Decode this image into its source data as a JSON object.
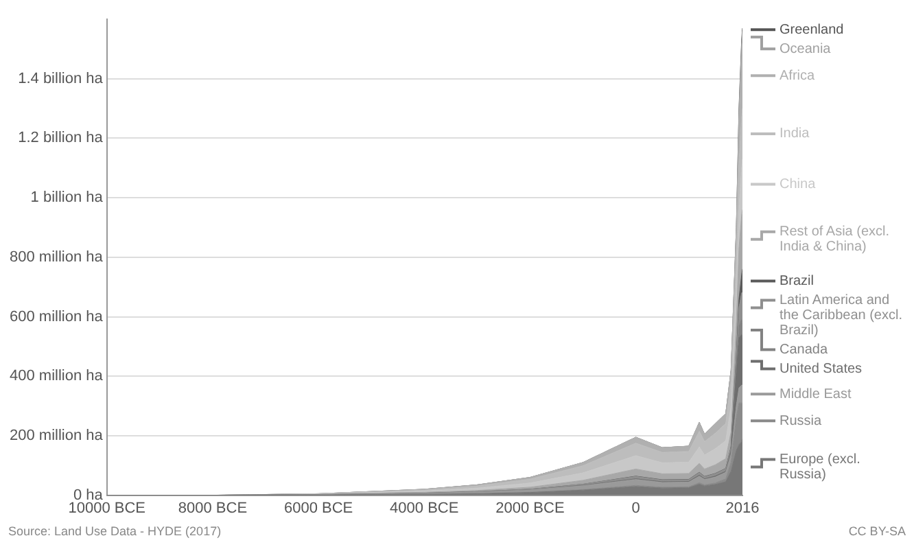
{
  "chart_data": {
    "type": "area",
    "stacked": true,
    "legend": "right",
    "x": [
      -10000,
      -8000,
      -6000,
      -4000,
      -3000,
      -2000,
      -1000,
      0,
      500,
      1000,
      1200,
      1300,
      1500,
      1700,
      1800,
      1900,
      1950,
      2000,
      2016
    ],
    "series": [
      {
        "name": "Europe (excl. Russia)",
        "color": "#777777",
        "values": [
          0,
          0,
          1000000.0,
          3000000.0,
          5000000.0,
          9000000.0,
          17000000.0,
          29000000.0,
          24000000.0,
          25000000.0,
          37000000.0,
          31000000.0,
          36000000.0,
          45000000.0,
          80000000.0,
          150000000.0,
          170000000.0,
          180000000.0,
          190000000.0
        ]
      },
      {
        "name": "Russia",
        "color": "#8a8a8a",
        "values": [
          0,
          0,
          0,
          0,
          1000000.0,
          1000000.0,
          2000000.0,
          4000000.0,
          3000000.0,
          3000000.0,
          5000000.0,
          4000000.0,
          5000000.0,
          10000000.0,
          30000000.0,
          110000000.0,
          140000000.0,
          130000000.0,
          120000000.0
        ]
      },
      {
        "name": "Middle East",
        "color": "#9a9a9a",
        "values": [
          0,
          0,
          1000000.0,
          3000000.0,
          5000000.0,
          8000000.0,
          13000000.0,
          20000000.0,
          16000000.0,
          16000000.0,
          22000000.0,
          18000000.0,
          20000000.0,
          22000000.0,
          28000000.0,
          40000000.0,
          50000000.0,
          60000000.0,
          60000000.0
        ]
      },
      {
        "name": "United States",
        "color": "#6e6e6e",
        "values": [
          0,
          0,
          0,
          0,
          0,
          0,
          1000000.0,
          2000000.0,
          2000000.0,
          2000000.0,
          3000000.0,
          2000000.0,
          3000000.0,
          3000000.0,
          10000000.0,
          110000000.0,
          170000000.0,
          170000000.0,
          160000000.0
        ]
      },
      {
        "name": "Canada",
        "color": "#828282",
        "values": [
          0,
          0,
          0,
          0,
          0,
          0,
          0,
          0,
          0,
          0,
          0,
          0,
          0,
          0,
          1000000.0,
          20000000.0,
          40000000.0,
          50000000.0,
          50000000.0
        ]
      },
      {
        "name": "Latin America and the Caribbean (excl. Brazil)",
        "color": "#8f8f8f",
        "values": [
          0,
          0,
          0,
          1000000.0,
          1000000.0,
          2000000.0,
          4000000.0,
          8000000.0,
          6000000.0,
          6000000.0,
          9000000.0,
          7000000.0,
          8000000.0,
          9000000.0,
          12000000.0,
          30000000.0,
          60000000.0,
          90000000.0,
          100000000.0
        ]
      },
      {
        "name": "Brazil",
        "color": "#5a5a5a",
        "values": [
          0,
          0,
          0,
          0,
          0,
          0,
          0,
          1000000.0,
          1000000.0,
          1000000.0,
          1000000.0,
          1000000.0,
          1000000.0,
          1000000.0,
          2000000.0,
          10000000.0,
          30000000.0,
          60000000.0,
          80000000.0
        ]
      },
      {
        "name": "Rest of Asia (excl. India & China)",
        "color": "#a8a8a8",
        "values": [
          0,
          0,
          1000000.0,
          3000000.0,
          4000000.0,
          7000000.0,
          13000000.0,
          24000000.0,
          20000000.0,
          20000000.0,
          30000000.0,
          25000000.0,
          29000000.0,
          33000000.0,
          50000000.0,
          110000000.0,
          170000000.0,
          200000000.0,
          200000000.0
        ]
      },
      {
        "name": "China",
        "color": "#c8c8c8",
        "values": [
          0,
          0,
          1000000.0,
          4000000.0,
          8000000.0,
          14000000.0,
          25000000.0,
          45000000.0,
          37000000.0,
          38000000.0,
          55000000.0,
          47000000.0,
          54000000.0,
          60000000.0,
          85000000.0,
          110000000.0,
          130000000.0,
          160000000.0,
          170000000.0
        ]
      },
      {
        "name": "India",
        "color": "#bdbdbd",
        "values": [
          0,
          0,
          1000000.0,
          4000000.0,
          7000000.0,
          13000000.0,
          24000000.0,
          42000000.0,
          35000000.0,
          36000000.0,
          53000000.0,
          45000000.0,
          52000000.0,
          58000000.0,
          82000000.0,
          120000000.0,
          150000000.0,
          170000000.0,
          170000000.0
        ]
      },
      {
        "name": "Africa",
        "color": "#b0b0b0",
        "values": [
          0,
          0,
          0,
          2000000.0,
          4000000.0,
          6000000.0,
          11000000.0,
          20000000.0,
          16000000.0,
          18000000.0,
          30000000.0,
          25000000.0,
          32000000.0,
          34000000.0,
          40000000.0,
          80000000.0,
          140000000.0,
          200000000.0,
          220000000.0
        ]
      },
      {
        "name": "Oceania",
        "color": "#a0a0a0",
        "values": [
          0,
          0,
          0,
          0,
          0,
          0,
          0,
          0,
          0,
          0,
          0,
          0,
          0,
          0,
          0,
          10000000.0,
          40000000.0,
          50000000.0,
          40000000.0
        ]
      },
      {
        "name": "Greenland",
        "color": "#555555",
        "values": [
          0,
          0,
          0,
          0,
          0,
          0,
          0,
          0,
          0,
          0,
          0,
          0,
          0,
          0,
          0,
          0,
          10000000.0,
          10000000.0,
          10000000.0
        ]
      }
    ],
    "xlim": [
      -10000,
      2016
    ],
    "xticks": [
      {
        "value": -10000,
        "label": "10000 BCE"
      },
      {
        "value": -8000,
        "label": "8000 BCE"
      },
      {
        "value": -6000,
        "label": "6000 BCE"
      },
      {
        "value": -4000,
        "label": "4000 BCE"
      },
      {
        "value": -2000,
        "label": "2000 BCE"
      },
      0,
      2016
    ],
    "ylim": [
      0,
      1600000000.0
    ],
    "yticks": [
      {
        "value": 0,
        "label": "0 ha"
      },
      {
        "value": 200000000.0,
        "label": "200 million ha"
      },
      {
        "value": 400000000.0,
        "label": "400 million ha"
      },
      {
        "value": 600000000.0,
        "label": "600 million ha"
      },
      {
        "value": 800000000.0,
        "label": "800 million ha"
      },
      {
        "value": 1000000000.0,
        "label": "1 billion ha"
      },
      {
        "value": 1200000000.0,
        "label": "1.2 billion ha"
      },
      {
        "value": 1400000000.0,
        "label": "1.4 billion ha"
      }
    ],
    "grid": "y",
    "annotations": [
      "Source: Land Use Data - HYDE (2017)",
      "CC BY-SA"
    ]
  }
}
